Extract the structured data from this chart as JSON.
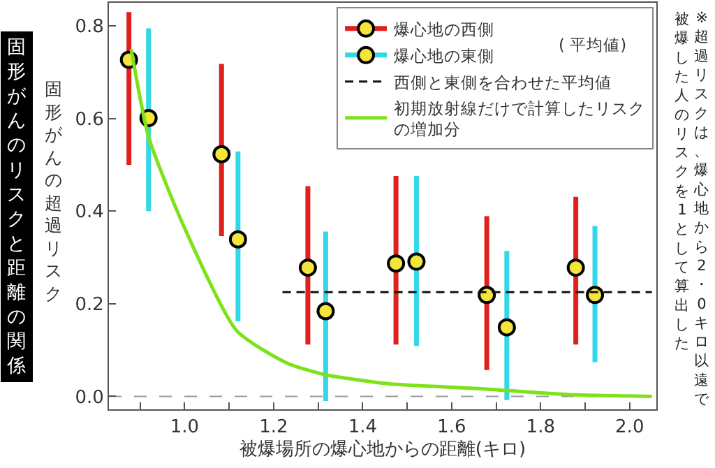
{
  "chart_data": {
    "type": "scatter",
    "title": "固形がんのリスクと距離の関係",
    "xlabel": "被爆場所の爆心地からの距離(キロ)",
    "ylabel": "固形がんの超過リスク",
    "annotations": [
      "※超過リスクは、爆心地から2・0キロ以遠で",
      "被爆した人のリスクを1として算出した",
      "( 平均値)"
    ],
    "xlim": [
      0.83,
      2.06
    ],
    "ylim": [
      -0.028,
      0.85
    ],
    "xticks": [
      {
        "value": 0.9,
        "label": null
      },
      {
        "value": 1.0,
        "label": "1.0"
      },
      {
        "value": 1.1,
        "label": null
      },
      1.2,
      {
        "value": 1.3,
        "label": null
      },
      1.4,
      {
        "value": 1.5,
        "label": null
      },
      1.6,
      {
        "value": 1.7,
        "label": null
      },
      1.8,
      {
        "value": 1.9,
        "label": null
      },
      {
        "value": 2.0,
        "label": "2.0"
      }
    ],
    "yticks": [
      {
        "value": 0,
        "label": "0.0"
      },
      0.2,
      0.4,
      0.6,
      0.8
    ],
    "grid": false,
    "legend": "top right",
    "ref_lines": [
      {
        "axis": "y",
        "value": 0,
        "label": null,
        "color": "#999999",
        "line_style": "dashed"
      }
    ],
    "series": [
      {
        "name": "爆心地の西側",
        "color": "#e0201c",
        "colors": [
          "#f5e53a",
          "#f5e53a",
          "#f5e53a",
          "#f5e53a",
          "#f5e53a",
          "#f5e53a"
        ],
        "marker": "circle",
        "x": [
          0.875,
          1.083,
          1.277,
          1.475,
          1.679,
          1.879
        ],
        "values": [
          0.727,
          0.523,
          0.278,
          0.287,
          0.219,
          0.278
        ],
        "errors": [
          [
            0.5,
            0.83
          ],
          [
            0.346,
            0.718
          ],
          [
            0.112,
            0.454
          ],
          [
            0.112,
            0.476
          ],
          [
            0.057,
            0.389
          ],
          [
            0.112,
            0.431
          ]
        ]
      },
      {
        "name": "爆心地の東側",
        "color": "#33d8e8",
        "colors": [
          "#f5e53a",
          "#f5e53a",
          "#f5e53a",
          "#f5e53a",
          "#f5e53a",
          "#f5e53a"
        ],
        "marker": "circle",
        "x": [
          0.919,
          1.12,
          1.317,
          1.521,
          1.724,
          1.922
        ],
        "values": [
          0.601,
          0.339,
          0.184,
          0.291,
          0.149,
          0.219
        ],
        "errors": [
          [
            0.4,
            0.795
          ],
          [
            0.162,
            0.529
          ],
          [
            -0.01,
            0.356
          ],
          [
            0.109,
            0.476
          ],
          [
            -0.008,
            0.314
          ],
          [
            0.074,
            0.368
          ]
        ]
      },
      {
        "name": "西側と東側を合わせた平均値",
        "type": "line",
        "color": "#111111",
        "line_style": "dashed",
        "marker": "none",
        "x": [
          1.22,
          2.05
        ],
        "values": [
          0.225,
          0.225
        ]
      },
      {
        "name": "初期放射線だけで計算したリスクの増加分",
        "type": "line",
        "color": "#7ee21a",
        "line_style": "solid",
        "marker": "none",
        "x": [
          0.88,
          0.919,
          0.992,
          1.117,
          1.23,
          1.315,
          1.46,
          1.66,
          1.86,
          2.05
        ],
        "values": [
          0.75,
          0.561,
          0.381,
          0.142,
          0.072,
          0.047,
          0.027,
          0.017,
          0.004,
          0.0
        ]
      }
    ]
  }
}
